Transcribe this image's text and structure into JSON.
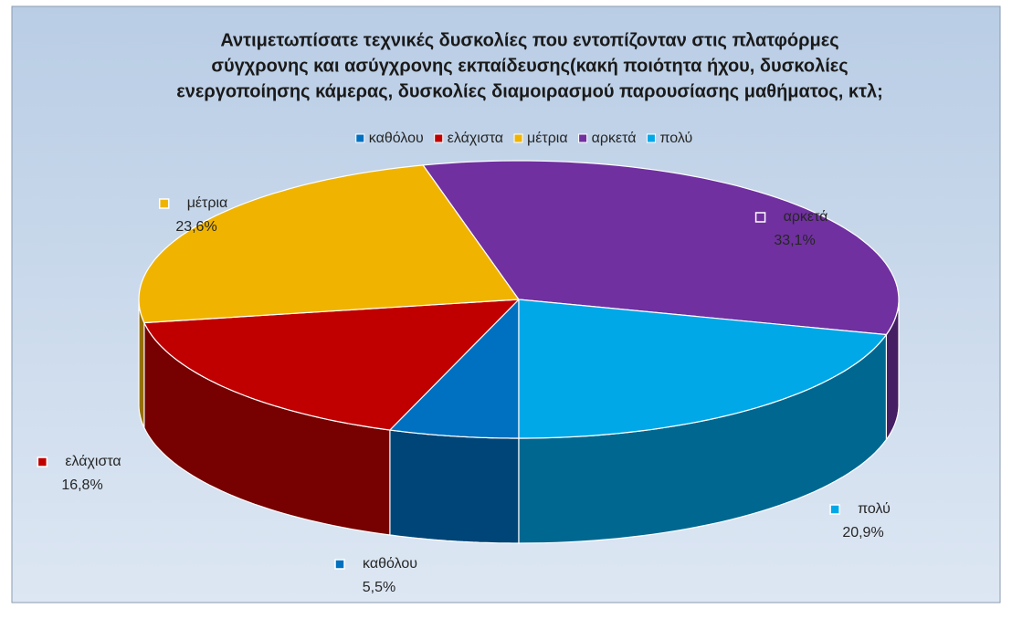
{
  "chart_data": {
    "type": "pie3d",
    "title": [
      "Αντιμετωπίσατε τεχνικές δυσκολίες που εντοπίζονταν στις πλατφόρμες",
      "σύγχρονης και ασύγχρονης εκπαίδευσης(κακή ποιότητα ήχου, δυσκολίες",
      "ενεργοποίησης κάμερας, δυσκολίες διαμοιρασμού παρουσίασης μαθήματος, κτλ;"
    ],
    "categories": [
      "καθόλου",
      "ελάχιστα",
      "μέτρια",
      "αρκετά",
      "πολύ"
    ],
    "values": [
      5.5,
      16.8,
      23.6,
      33.1,
      20.9
    ],
    "value_labels": [
      "5,5%",
      "16,8%",
      "23,6%",
      "33,1%",
      "20,9%"
    ],
    "colors": [
      "#0070c0",
      "#c00000",
      "#f0b400",
      "#7030a0",
      "#00a8e8"
    ],
    "legend": "top"
  }
}
